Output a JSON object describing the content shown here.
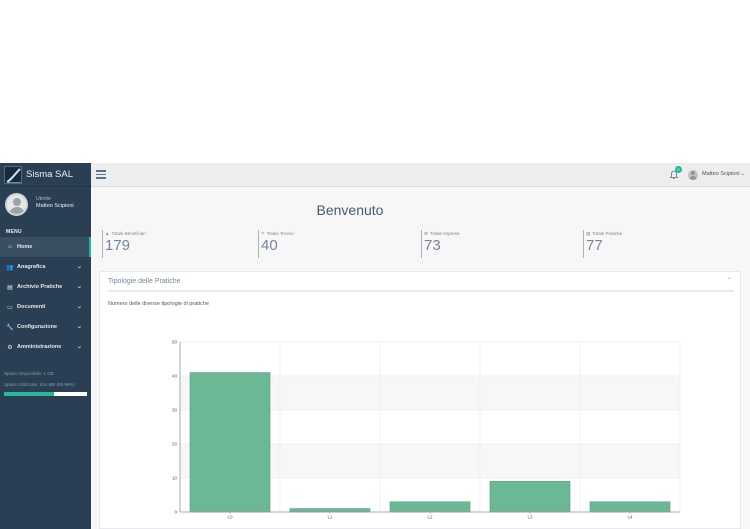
{
  "sidebar": {
    "brand_title": "Sisma SAL",
    "profile_role": "Utente",
    "profile_name": "Matteo Scipioni",
    "menu_title": "MENU",
    "items": [
      {
        "label": "Home",
        "icon": "home-icon"
      },
      {
        "label": "Anagrafica",
        "icon": "users-icon"
      },
      {
        "label": "Archivio Pratiche",
        "icon": "archive-icon"
      },
      {
        "label": "Documenti",
        "icon": "inbox-icon"
      },
      {
        "label": "Configurazione",
        "icon": "wrench-icon"
      },
      {
        "label": "Amministrazione",
        "icon": "cogs-icon"
      }
    ],
    "disk_available": "Spazio Disponibile: 1 GB",
    "disk_used": "Spazio Utilizzato: 614 MB (59.96%)",
    "disk_used_fraction": 0.5996
  },
  "topbar": {
    "notifications_count": "0",
    "user_name": "Matteo Scipioni"
  },
  "main": {
    "title": "Benvenuto",
    "tiles": [
      {
        "label": "Totale Beneficiari",
        "value": "179",
        "icon": "user-icon"
      },
      {
        "label": "Totale Tecnici",
        "value": "40",
        "icon": "wrench-icon"
      },
      {
        "label": "Totale Imprese",
        "value": "73",
        "icon": "cogs-icon"
      },
      {
        "label": "Totale Pratiche",
        "value": "77",
        "icon": "archive-icon"
      }
    ],
    "panel_title": "Tipologie delle Pratiche",
    "panel_subtitle": "Numero delle diverse tipologie di pratiche"
  },
  "colors": {
    "sidebar_bg": "#2A3F54",
    "accent": "#1ABB9C",
    "bar_fill": "#6BB895",
    "bar_stroke": "#4E9C77"
  },
  "chart_data": {
    "type": "bar",
    "categories": [
      "L0",
      "L1",
      "L2",
      "L3",
      "L4"
    ],
    "values": [
      41,
      1,
      3,
      9,
      3
    ],
    "ylim": [
      0,
      50
    ],
    "yticks": [
      0,
      10,
      20,
      30,
      40,
      50
    ],
    "grid": true
  }
}
